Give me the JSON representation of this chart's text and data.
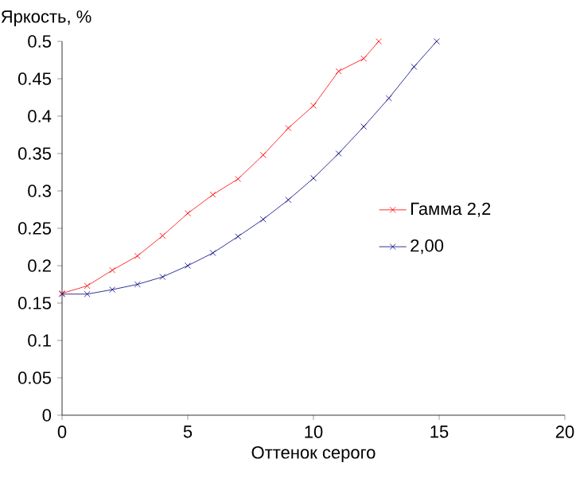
{
  "chart_data": {
    "type": "line",
    "xlabel": "Оттенок серого",
    "ylabel": "Яркость, %",
    "xlim": [
      0,
      20
    ],
    "xticks": [
      0,
      5,
      10,
      15,
      20
    ],
    "ylim": [
      0,
      0.5
    ],
    "yticks": [
      0,
      0.05,
      0.1,
      0.15,
      0.2,
      0.25,
      0.3,
      0.35,
      0.4,
      0.45,
      0.5
    ],
    "marker": "cross",
    "legend": "right",
    "grid": false,
    "series": [
      {
        "name": "Гамма 2,2",
        "color": "#ff0000",
        "x": [
          0,
          1,
          2,
          3,
          4,
          5,
          6,
          7,
          8,
          9,
          10,
          11,
          12,
          12.6
        ],
        "values": [
          0.163,
          0.173,
          0.194,
          0.213,
          0.24,
          0.27,
          0.295,
          0.316,
          0.348,
          0.384,
          0.414,
          0.46,
          0.477,
          0.5
        ]
      },
      {
        "name": "2,00",
        "color": "#000080",
        "x": [
          0,
          1,
          2,
          3,
          4,
          5,
          6,
          7,
          8,
          9,
          10,
          11,
          12,
          13,
          14,
          14.9
        ],
        "values": [
          0.162,
          0.162,
          0.168,
          0.175,
          0.185,
          0.2,
          0.217,
          0.239,
          0.262,
          0.288,
          0.317,
          0.35,
          0.386,
          0.424,
          0.466,
          0.5
        ]
      }
    ]
  }
}
